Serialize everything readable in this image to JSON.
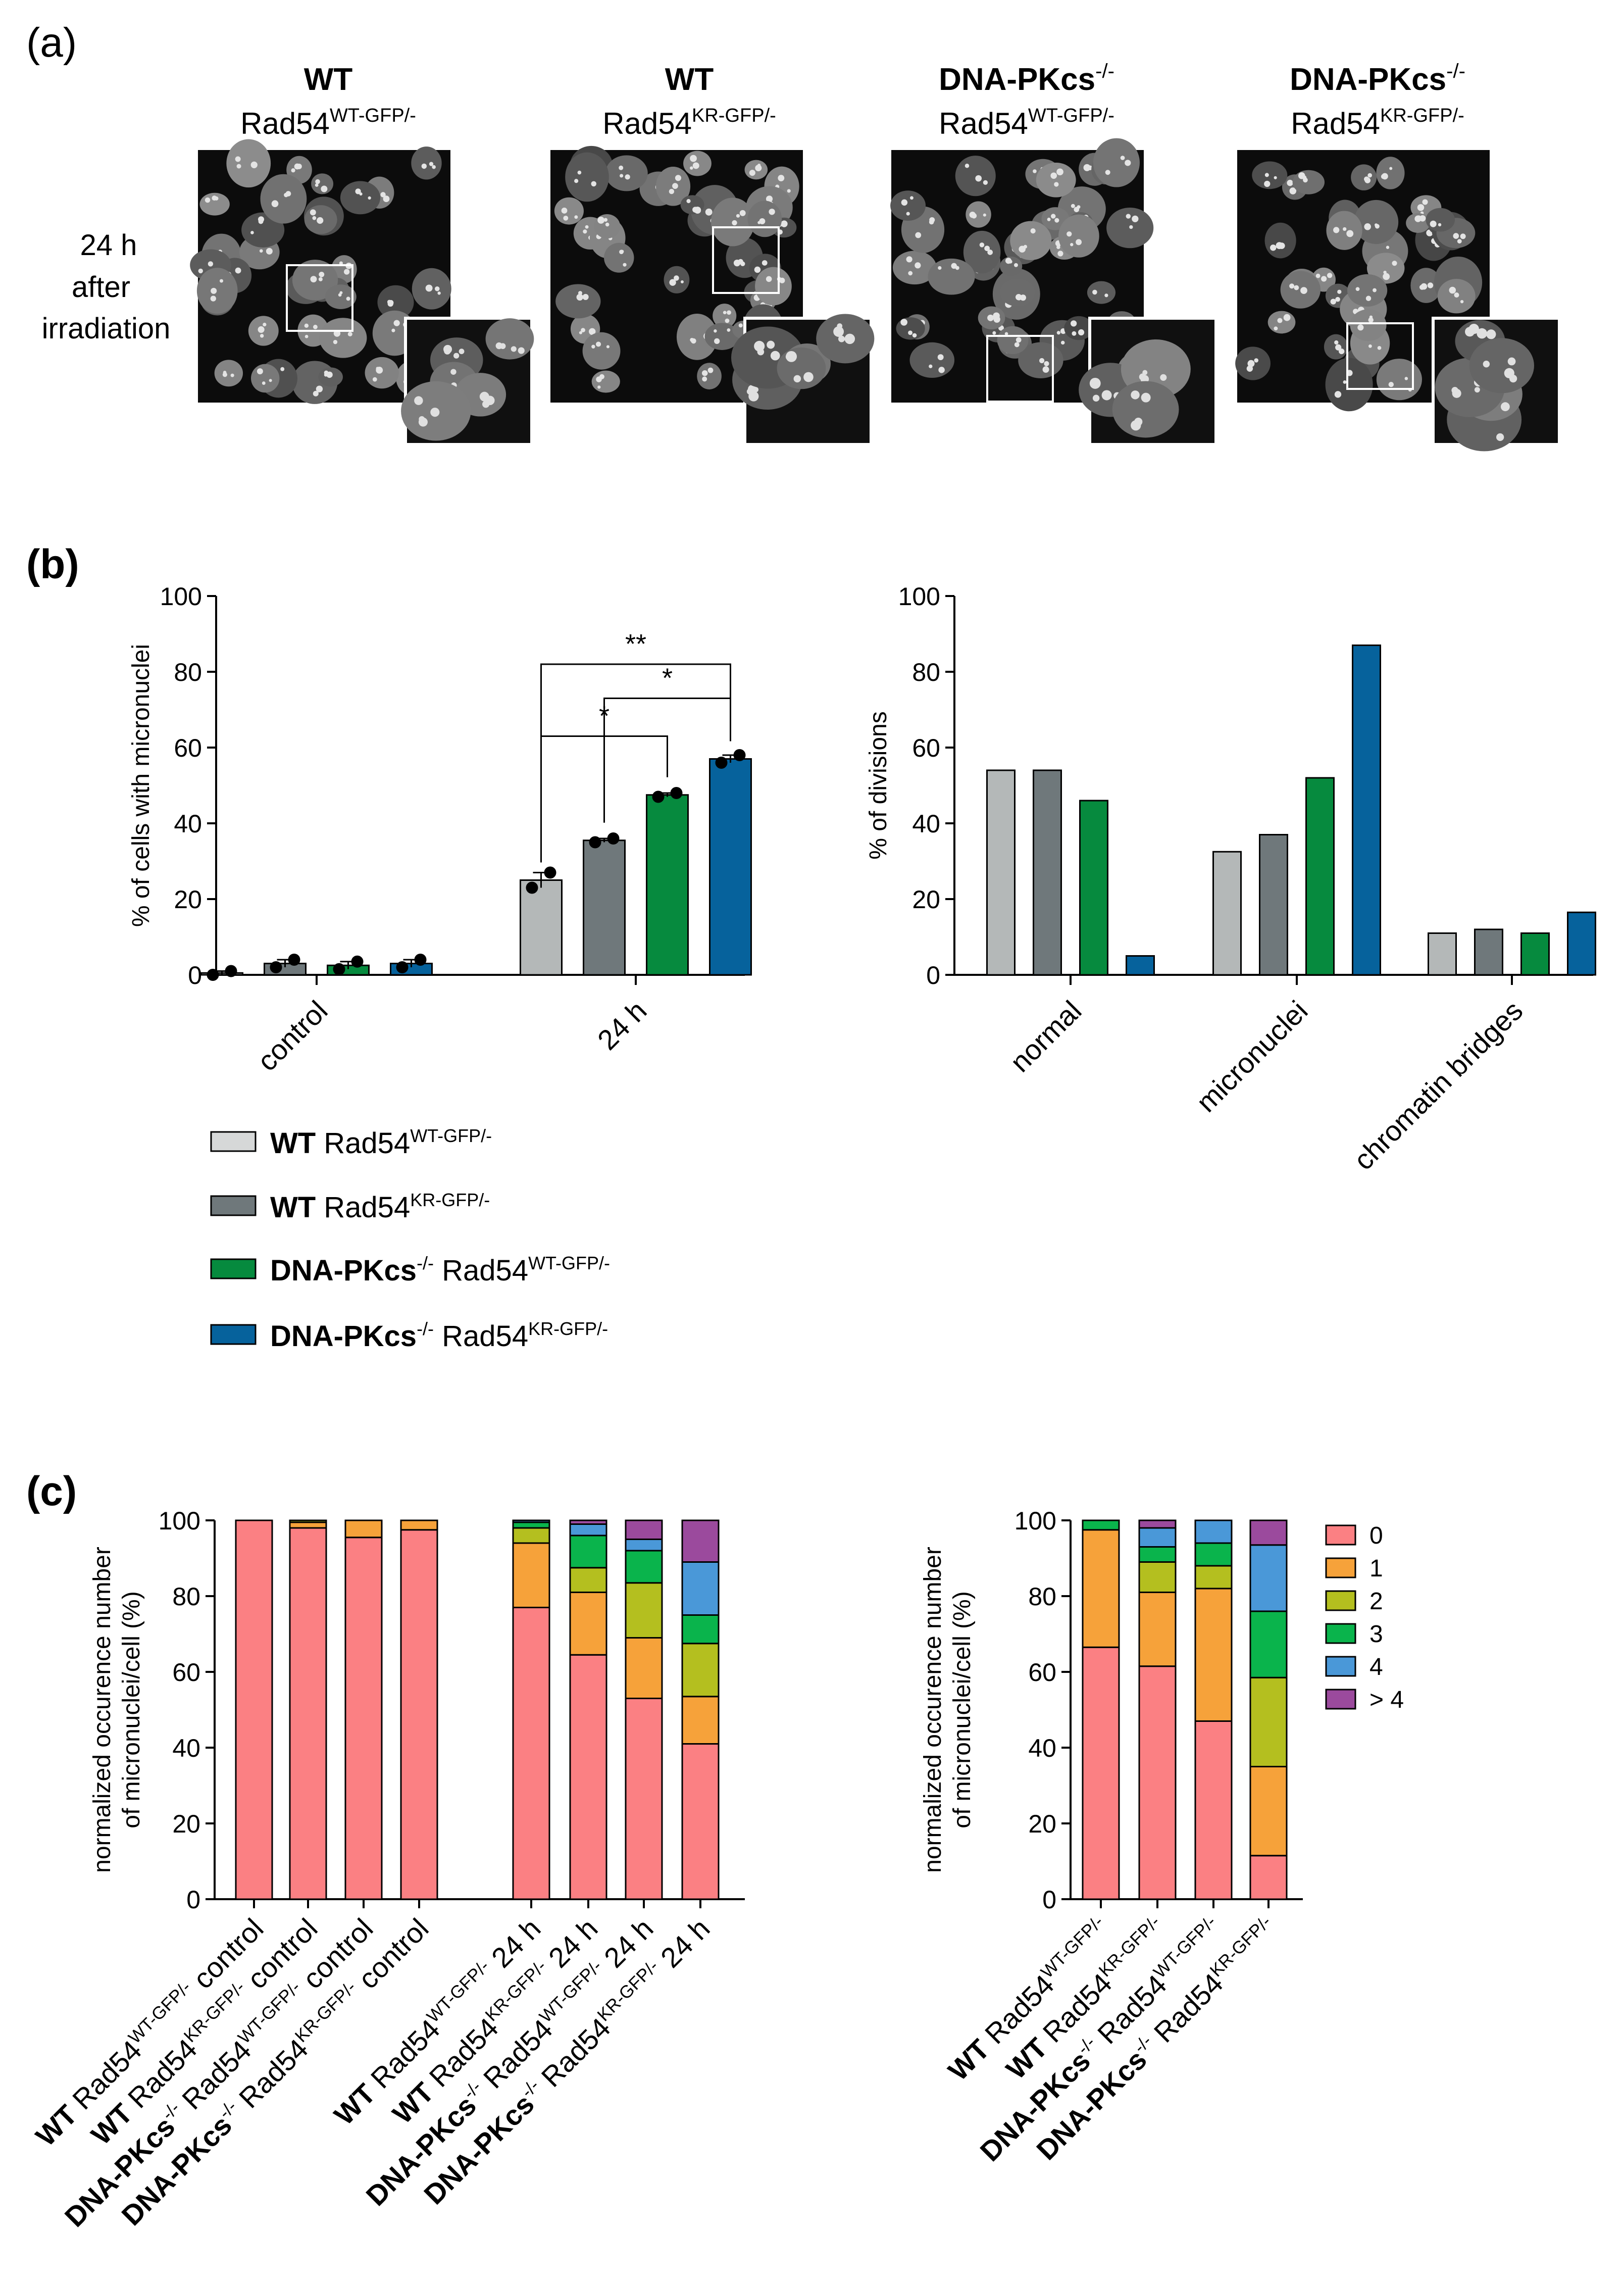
{
  "panels": {
    "a": {
      "label": "(a)",
      "row_label": [
        "24 h",
        "after",
        "irradiation"
      ],
      "conditions": [
        {
          "line1": "WT",
          "line2": "Rad54",
          "sup": "WT-GFP/-"
        },
        {
          "line1": "WT",
          "line2": "Rad54",
          "sup": "KR-GFP/-"
        },
        {
          "line1": "DNA-PKcs",
          "line1_sup": "-/-",
          "line2": "Rad54",
          "sup": "WT-GFP/-"
        },
        {
          "line1": "DNA-PKcs",
          "line1_sup": "-/-",
          "line2": "Rad54",
          "sup": "KR-GFP/-"
        }
      ]
    },
    "b": {
      "label": "(b)"
    },
    "c": {
      "label": "(c)"
    }
  },
  "colors": {
    "wt_wt": "#b4b8b8",
    "wt_kr": "#6f787b",
    "pk_wt": "#068a3e",
    "pk_kr": "#06629c",
    "c0": "#fb8083",
    "c1": "#f6a23a",
    "c2": "#b4bf1f",
    "c3": "#0ab44c",
    "c4": "#4a98d8",
    "c5": "#9b4a9d"
  },
  "legend_b": [
    {
      "bold": "WT",
      "bold_sup": "",
      "text": "Rad54",
      "sup": "WT-GFP/-",
      "color": "#d6d8d8"
    },
    {
      "bold": "WT",
      "bold_sup": "",
      "text": "Rad54",
      "sup": "KR-GFP/-",
      "color": "#6f787b"
    },
    {
      "bold": "DNA-PKcs",
      "bold_sup": "-/-",
      "text": "Rad54",
      "sup": "WT-GFP/-",
      "color": "#068a3e"
    },
    {
      "bold": "DNA-PKcs",
      "bold_sup": "-/-",
      "text": "Rad54",
      "sup": "KR-GFP/-",
      "color": "#06629c"
    }
  ],
  "chart_data": [
    {
      "id": "b-left",
      "type": "bar",
      "ylabel": "% of cells with micronuclei",
      "ylim": [
        0,
        100
      ],
      "yticks": [
        0,
        20,
        40,
        60,
        80,
        100
      ],
      "categories": [
        "control",
        "24 h"
      ],
      "series": [
        {
          "name": "WT Rad54WT-GFP/-",
          "values": [
            0.5,
            25
          ],
          "points": [
            [
              0,
              1
            ],
            [
              23,
              27
            ]
          ]
        },
        {
          "name": "WT Rad54KR-GFP/-",
          "values": [
            3,
            35.5
          ],
          "points": [
            [
              2,
              4
            ],
            [
              35,
              36
            ]
          ]
        },
        {
          "name": "DNA-PKcs-/- Rad54WT-GFP/-",
          "values": [
            2.5,
            47.5
          ],
          "points": [
            [
              1.5,
              3.5
            ],
            [
              47,
              48
            ]
          ]
        },
        {
          "name": "DNA-PKcs-/- Rad54KR-GFP/-",
          "values": [
            3,
            57
          ],
          "points": [
            [
              2,
              4
            ],
            [
              56,
              58
            ]
          ]
        }
      ],
      "significance": [
        {
          "from": 0,
          "to": 3,
          "label": "**",
          "y": 82
        },
        {
          "from": 1,
          "to": 3,
          "label": "*",
          "y": 73
        },
        {
          "from": 0,
          "to": 2,
          "label": "*",
          "y": 63
        }
      ]
    },
    {
      "id": "b-right",
      "type": "bar",
      "ylabel": "% of divisions",
      "ylim": [
        0,
        100
      ],
      "yticks": [
        0,
        20,
        40,
        60,
        80,
        100
      ],
      "categories": [
        "normal",
        "micronuclei",
        "chromatin bridges"
      ],
      "series": [
        {
          "name": "WT Rad54WT-GFP/-",
          "values": [
            54,
            32.5,
            11
          ]
        },
        {
          "name": "WT Rad54KR-GFP/-",
          "values": [
            54,
            37,
            12
          ]
        },
        {
          "name": "DNA-PKcs-/- Rad54WT-GFP/-",
          "values": [
            46,
            52,
            11
          ]
        },
        {
          "name": "DNA-PKcs-/- Rad54KR-GFP/-",
          "values": [
            5,
            87,
            16.5
          ]
        }
      ]
    },
    {
      "id": "c-left",
      "type": "stacked-bar",
      "ylabel": [
        "normalized occurence number",
        "of micronuclei/cell (%)"
      ],
      "ylim": [
        0,
        100
      ],
      "yticks": [
        0,
        20,
        40,
        60,
        80,
        100
      ],
      "categories": [
        {
          "bold": "WT",
          "bold_sup": "",
          "text": "Rad54",
          "sup": "WT-GFP/-",
          "suffix": "control"
        },
        {
          "bold": "WT",
          "bold_sup": "",
          "text": "Rad54",
          "sup": "KR-GFP/-",
          "suffix": "control"
        },
        {
          "bold": "DNA-PKcs",
          "bold_sup": "-/-",
          "text": "Rad54",
          "sup": "WT-GFP/-",
          "suffix": "control"
        },
        {
          "bold": "DNA-PKcs",
          "bold_sup": "-/-",
          "text": "Rad54",
          "sup": "KR-GFP/-",
          "suffix": "control"
        },
        {
          "bold": "WT",
          "bold_sup": "",
          "text": "Rad54",
          "sup": "WT-GFP/-",
          "suffix": "24 h"
        },
        {
          "bold": "WT",
          "bold_sup": "",
          "text": "Rad54",
          "sup": "KR-GFP/-",
          "suffix": "24 h"
        },
        {
          "bold": "DNA-PKcs",
          "bold_sup": "-/-",
          "text": "Rad54",
          "sup": "WT-GFP/-",
          "suffix": "24 h"
        },
        {
          "bold": "DNA-PKcs",
          "bold_sup": "-/-",
          "text": "Rad54",
          "sup": "KR-GFP/-",
          "suffix": "24 h"
        }
      ],
      "series": [
        {
          "name": "0",
          "values": [
            100,
            98,
            95.5,
            97.5,
            77,
            64.5,
            53,
            41
          ]
        },
        {
          "name": "1",
          "values": [
            0,
            1.5,
            4.5,
            2.5,
            17,
            16.5,
            16,
            12.5
          ]
        },
        {
          "name": "2",
          "values": [
            0,
            0.5,
            0,
            0,
            4,
            6.5,
            14.5,
            14
          ]
        },
        {
          "name": "3",
          "values": [
            0,
            0,
            0,
            0,
            1.5,
            8.5,
            8.5,
            7.5
          ]
        },
        {
          "name": "4",
          "values": [
            0,
            0,
            0,
            0,
            0.5,
            3,
            3,
            14
          ]
        },
        {
          "name": "> 4",
          "values": [
            0,
            0,
            0,
            0,
            0,
            1,
            5,
            11
          ]
        }
      ]
    },
    {
      "id": "c-right",
      "type": "stacked-bar",
      "ylabel": [
        "normalized occurence number",
        "of micronuclei/cell (%)"
      ],
      "ylim": [
        0,
        100
      ],
      "yticks": [
        0,
        20,
        40,
        60,
        80,
        100
      ],
      "categories": [
        {
          "bold": "WT",
          "bold_sup": "",
          "text": "Rad54",
          "sup": "WT-GFP/-",
          "suffix": ""
        },
        {
          "bold": "WT",
          "bold_sup": "",
          "text": "Rad54",
          "sup": "KR-GFP/-",
          "suffix": ""
        },
        {
          "bold": "DNA-PKcs",
          "bold_sup": "-/-",
          "text": "Rad54",
          "sup": "WT-GFP/-",
          "suffix": ""
        },
        {
          "bold": "DNA-PKcs",
          "bold_sup": "-/-",
          "text": "Rad54",
          "sup": "KR-GFP/-",
          "suffix": ""
        }
      ],
      "series": [
        {
          "name": "0",
          "values": [
            66.5,
            61.5,
            47,
            11.5
          ]
        },
        {
          "name": "1",
          "values": [
            31,
            19.5,
            35,
            23.5
          ]
        },
        {
          "name": "2",
          "values": [
            0,
            8,
            6,
            23.5
          ]
        },
        {
          "name": "3",
          "values": [
            2.5,
            4,
            6,
            17.5
          ]
        },
        {
          "name": "4",
          "values": [
            0,
            5,
            6,
            17.5
          ]
        },
        {
          "name": "> 4",
          "values": [
            0,
            2,
            0,
            6.5
          ]
        }
      ],
      "legend": [
        "0",
        "1",
        "2",
        "3",
        "4",
        "> 4"
      ]
    }
  ]
}
